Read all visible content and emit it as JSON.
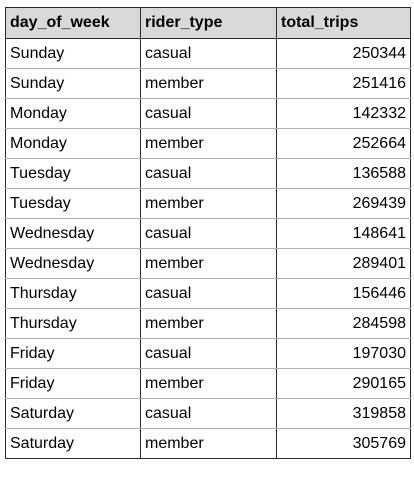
{
  "table": {
    "columns": [
      "day_of_week",
      "rider_type",
      "total_trips"
    ],
    "rows": [
      [
        "Sunday",
        "casual",
        "250344"
      ],
      [
        "Sunday",
        "member",
        "251416"
      ],
      [
        "Monday",
        "casual",
        "142332"
      ],
      [
        "Monday",
        "member",
        "252664"
      ],
      [
        "Tuesday",
        "casual",
        "136588"
      ],
      [
        "Tuesday",
        "member",
        "269439"
      ],
      [
        "Wednesday",
        "casual",
        "148641"
      ],
      [
        "Wednesday",
        "member",
        "289401"
      ],
      [
        "Thursday",
        "casual",
        "156446"
      ],
      [
        "Thursday",
        "member",
        "284598"
      ],
      [
        "Friday",
        "casual",
        "197030"
      ],
      [
        "Friday",
        "member",
        "290165"
      ],
      [
        "Saturday",
        "casual",
        "319858"
      ],
      [
        "Saturday",
        "member",
        "305769"
      ]
    ]
  },
  "colors": {
    "header_bg": "#d9d9d9",
    "border": "#2b2b2b",
    "row_divider": "#b0b0b0"
  }
}
